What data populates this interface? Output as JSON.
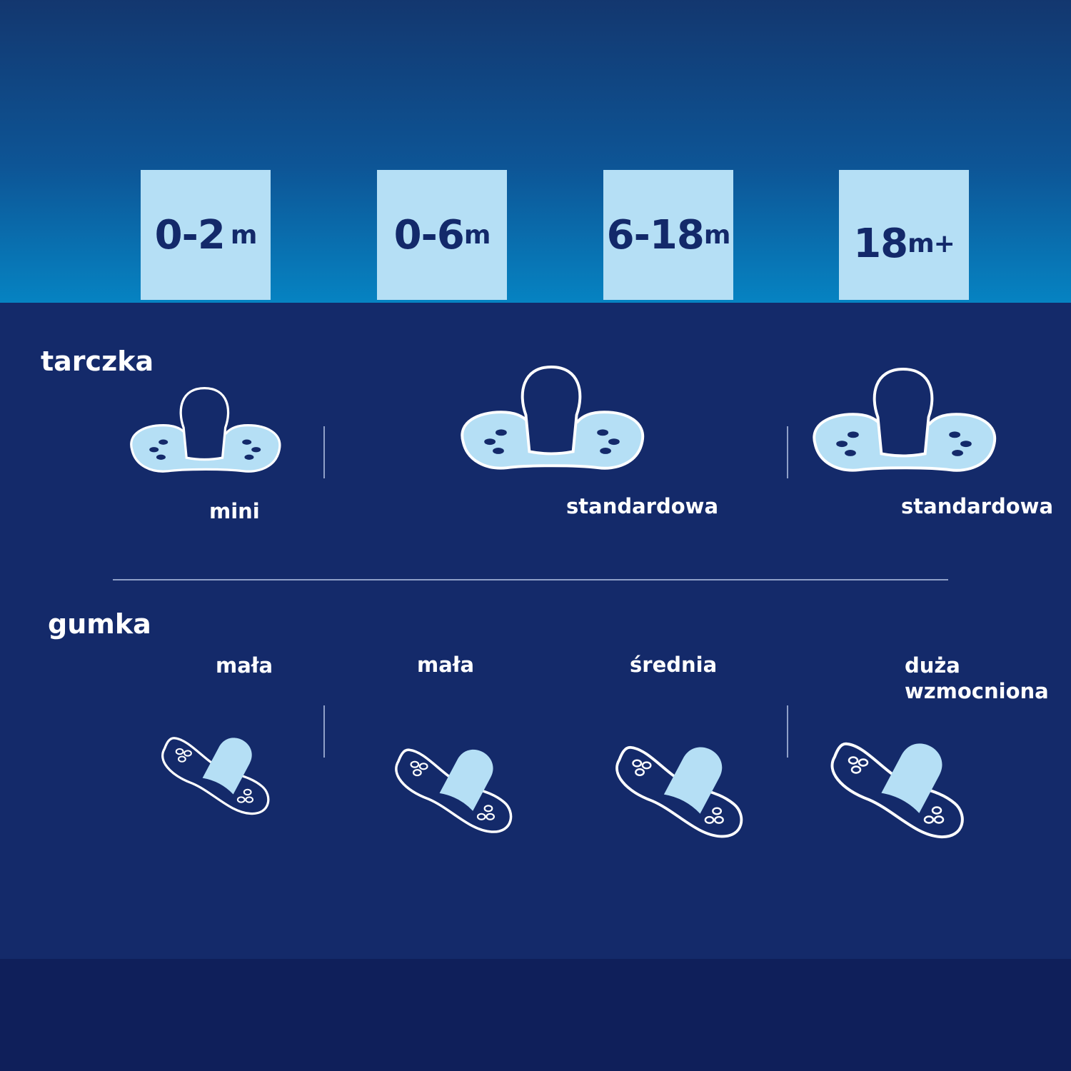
{
  "colors": {
    "top_gradient_start": "#13376f",
    "top_gradient_end": "#0683c2",
    "background": "#142a6a",
    "age_box": "#b5dff5",
    "age_text": "#13296a",
    "icon_fill": "#b5dff5"
  },
  "ages": [
    {
      "num": "0-2",
      "unit": "m"
    },
    {
      "num": "0-6",
      "unit": "m"
    },
    {
      "num": "6-18",
      "unit": "m"
    },
    {
      "num": "18",
      "unit": "m+"
    }
  ],
  "shield": {
    "heading": "tarczka",
    "items": [
      {
        "label": "mini",
        "icon": "pacifier-shield-icon"
      },
      {
        "label": "standardowa",
        "icon": "pacifier-shield-icon"
      },
      {
        "label": "standardowa",
        "icon": "pacifier-shield-icon"
      }
    ]
  },
  "teat": {
    "heading": "gumka",
    "items": [
      {
        "label": "mała",
        "icon": "pacifier-teat-icon"
      },
      {
        "label": "mała",
        "icon": "pacifier-teat-icon"
      },
      {
        "label": "średnia",
        "icon": "pacifier-teat-icon"
      },
      {
        "label": "duża wzmocniona",
        "line1": "duża",
        "line2": "wzmocniona",
        "icon": "pacifier-teat-icon"
      }
    ]
  }
}
